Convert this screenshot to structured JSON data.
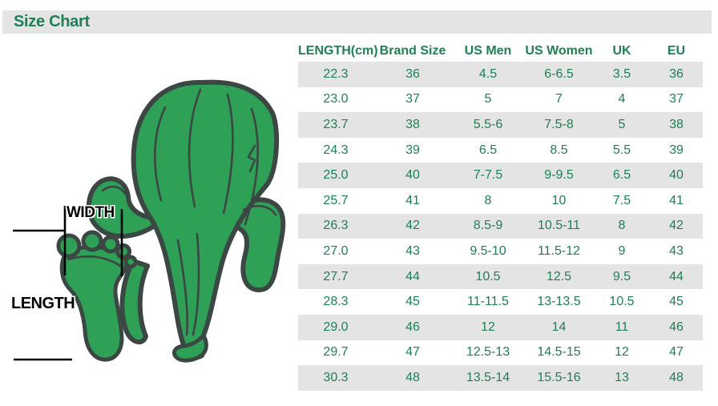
{
  "title": "Size Chart",
  "measurement_labels": {
    "width": "WIDTH",
    "length": "LENGTH"
  },
  "illustration": {
    "description": "green cartoon cactus figure running with large bare foot, width and length measuring lines"
  },
  "colors": {
    "accent_green": "#1e8054",
    "stripe_gray": "#e4e4e4",
    "figure_green": "#2ea157",
    "figure_outline": "#3b4743",
    "annotation_black": "#000000"
  },
  "size_table": {
    "columns": [
      "LENGTH(cm)",
      "Brand Size",
      "US Men",
      "US Women",
      "UK",
      "EU"
    ],
    "rows": [
      [
        "22.3",
        "36",
        "4.5",
        "6-6.5",
        "3.5",
        "36"
      ],
      [
        "23.0",
        "37",
        "5",
        "7",
        "4",
        "37"
      ],
      [
        "23.7",
        "38",
        "5.5-6",
        "7.5-8",
        "5",
        "38"
      ],
      [
        "24.3",
        "39",
        "6.5",
        "8.5",
        "5.5",
        "39"
      ],
      [
        "25.0",
        "40",
        "7-7.5",
        "9-9.5",
        "6.5",
        "40"
      ],
      [
        "25.7",
        "41",
        "8",
        "10",
        "7.5",
        "41"
      ],
      [
        "26.3",
        "42",
        "8.5-9",
        "10.5-11",
        "8",
        "42"
      ],
      [
        "27.0",
        "43",
        "9.5-10",
        "11.5-12",
        "9",
        "43"
      ],
      [
        "27.7",
        "44",
        "10.5",
        "12.5",
        "9.5",
        "44"
      ],
      [
        "28.3",
        "45",
        "11-11.5",
        "13-13.5",
        "10.5",
        "45"
      ],
      [
        "29.0",
        "46",
        "12",
        "14",
        "11",
        "46"
      ],
      [
        "29.7",
        "47",
        "12.5-13",
        "14.5-15",
        "12",
        "47"
      ],
      [
        "30.3",
        "48",
        "13.5-14",
        "15.5-16",
        "13",
        "48"
      ]
    ]
  }
}
